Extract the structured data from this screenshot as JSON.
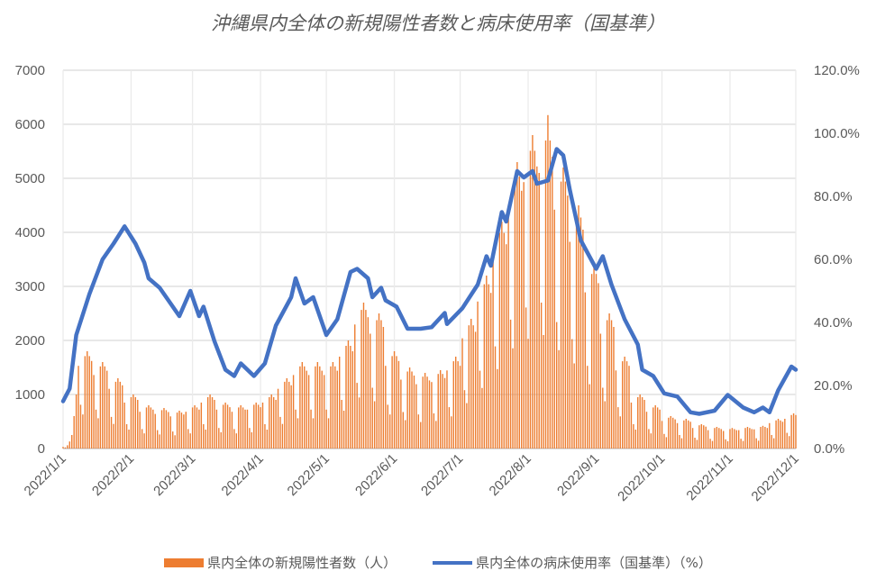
{
  "chart_data": {
    "type": "bar+line",
    "title": "沖縄県内全体の新規陽性者数と病床使用率（国基準）",
    "x_start_date": "2022/1/1",
    "x_tick_labels": [
      "2022/1/1",
      "2022/2/1",
      "2022/3/1",
      "2022/4/1",
      "2022/5/1",
      "2022/6/1",
      "2022/7/1",
      "2022/8/1",
      "2022/9/1",
      "2022/10/1",
      "2022/11/1",
      "2022/12/1"
    ],
    "x_tick_day_offsets": [
      0,
      31,
      59,
      90,
      120,
      151,
      181,
      212,
      243,
      273,
      304,
      334
    ],
    "y_left": {
      "range": [
        0,
        7000
      ],
      "ticks": [
        "0",
        "1000",
        "2000",
        "3000",
        "4000",
        "5000",
        "6000",
        "7000"
      ]
    },
    "y_right": {
      "range": [
        0,
        120
      ],
      "ticks": [
        "0.0%",
        "20.0%",
        "40.0%",
        "60.0%",
        "80.0%",
        "100.0%",
        "120.0%"
      ]
    },
    "grid": true,
    "legend_position": "bottom",
    "series": [
      {
        "name": "県内全体の新規陽性者数（人）",
        "type": "bar",
        "axis": "left",
        "color": "#ED7D31",
        "daily_values": [
          30,
          20,
          60,
          130,
          250,
          600,
          1000,
          1530,
          810,
          630,
          1710,
          1800,
          1710,
          1620,
          1360,
          720,
          560,
          1520,
          1600,
          1520,
          1440,
          1105,
          585,
          455,
          1235,
          1300,
          1235,
          1170,
          850,
          450,
          350,
          950,
          1000,
          950,
          900,
          680,
          360,
          280,
          760,
          800,
          760,
          720,
          640,
          340,
          260,
          710,
          750,
          710,
          675,
          595,
          315,
          245,
          665,
          700,
          665,
          630,
          680,
          360,
          280,
          760,
          800,
          760,
          720,
          850,
          450,
          350,
          950,
          1000,
          950,
          900,
          720,
          380,
          300,
          810,
          850,
          810,
          765,
          680,
          360,
          280,
          760,
          800,
          760,
          720,
          720,
          380,
          300,
          810,
          850,
          810,
          765,
          850,
          450,
          350,
          950,
          1000,
          950,
          900,
          1105,
          585,
          455,
          1235,
          1300,
          1235,
          1170,
          1360,
          720,
          560,
          1520,
          1600,
          1520,
          1440,
          1360,
          720,
          560,
          1520,
          1600,
          1520,
          1440,
          1360,
          720,
          560,
          1520,
          1600,
          1520,
          1440,
          1700,
          900,
          700,
          1900,
          2000,
          1900,
          1800,
          2295,
          1215,
          945,
          2565,
          2700,
          2565,
          2430,
          2125,
          1125,
          875,
          2375,
          2500,
          2375,
          2250,
          1530,
          810,
          630,
          1710,
          1800,
          1710,
          1620,
          1275,
          675,
          525,
          1425,
          1500,
          1425,
          1350,
          1190,
          630,
          490,
          1330,
          1400,
          1330,
          1260,
          1230,
          650,
          510,
          1380,
          1450,
          1380,
          1305,
          1445,
          765,
          595,
          1615,
          1700,
          1615,
          1530,
          2040,
          1080,
          840,
          2280,
          2400,
          2280,
          2160,
          2720,
          1440,
          1120,
          3040,
          3200,
          3040,
          2880,
          3570,
          1890,
          1470,
          3990,
          4200,
          3990,
          3780,
          4505,
          2385,
          1855,
          5035,
          5300,
          5035,
          4770,
          4930,
          2610,
          2030,
          5510,
          5800,
          5510,
          5220,
          5100,
          2700,
          2100,
          5700,
          6170,
          5700,
          5400,
          4420,
          2340,
          1820,
          4940,
          5200,
          4940,
          4680,
          3825,
          2025,
          1575,
          4275,
          4500,
          4275,
          4050,
          2890,
          1530,
          1190,
          3230,
          3400,
          3230,
          3060,
          2125,
          1125,
          875,
          2375,
          2500,
          2375,
          2250,
          1445,
          765,
          595,
          1615,
          1700,
          1615,
          1530,
          850,
          450,
          350,
          950,
          1000,
          950,
          900,
          680,
          360,
          280,
          760,
          800,
          760,
          720,
          510,
          270,
          210,
          570,
          600,
          570,
          540,
          470,
          250,
          190,
          520,
          550,
          520,
          495,
          380,
          200,
          160,
          430,
          450,
          430,
          405,
          340,
          180,
          140,
          380,
          400,
          380,
          360,
          325,
          170,
          135,
          360,
          380,
          360,
          340,
          340,
          180,
          140,
          380,
          400,
          380,
          360,
          355,
          190,
          145,
          400,
          420,
          400,
          380,
          470,
          250,
          190,
          520,
          550,
          520,
          495,
          550,
          290,
          230,
          620,
          650,
          620
        ]
      },
      {
        "name": "県内全体の病床使用率（国基準）（%）",
        "type": "line",
        "axis": "right",
        "color": "#4472C4",
        "points_day_pct": [
          [
            0,
            15
          ],
          [
            3,
            19
          ],
          [
            6,
            36
          ],
          [
            12,
            49
          ],
          [
            18,
            60
          ],
          [
            23,
            65
          ],
          [
            28,
            70.5
          ],
          [
            33,
            65
          ],
          [
            37,
            59
          ],
          [
            39,
            54
          ],
          [
            44,
            51
          ],
          [
            49,
            46
          ],
          [
            53,
            42
          ],
          [
            58,
            50
          ],
          [
            62,
            42
          ],
          [
            64,
            45
          ],
          [
            69,
            34
          ],
          [
            74,
            25
          ],
          [
            78,
            23
          ],
          [
            81,
            27
          ],
          [
            87,
            23
          ],
          [
            92,
            27
          ],
          [
            97,
            39
          ],
          [
            104,
            48
          ],
          [
            106,
            54
          ],
          [
            110,
            46
          ],
          [
            114,
            48
          ],
          [
            120,
            36
          ],
          [
            125,
            41
          ],
          [
            131,
            56
          ],
          [
            134,
            57
          ],
          [
            139,
            54
          ],
          [
            141,
            48
          ],
          [
            145,
            51
          ],
          [
            147,
            47
          ],
          [
            152,
            45
          ],
          [
            157,
            38
          ],
          [
            163,
            38
          ],
          [
            168,
            38.5
          ],
          [
            174,
            43
          ],
          [
            175,
            39.5
          ],
          [
            182,
            44.5
          ],
          [
            189,
            52
          ],
          [
            193,
            61
          ],
          [
            195,
            58
          ],
          [
            200,
            75
          ],
          [
            202,
            72
          ],
          [
            207,
            88
          ],
          [
            210,
            86
          ],
          [
            214,
            88
          ],
          [
            216,
            84
          ],
          [
            221,
            85
          ],
          [
            225,
            95
          ],
          [
            228,
            93
          ],
          [
            231,
            82
          ],
          [
            236,
            66
          ],
          [
            243,
            57
          ],
          [
            246,
            61
          ],
          [
            250,
            52
          ],
          [
            256,
            41
          ],
          [
            262,
            33
          ],
          [
            264,
            25
          ],
          [
            269,
            23
          ],
          [
            274,
            17.5
          ],
          [
            280,
            16.5
          ],
          [
            286,
            11.5
          ],
          [
            290,
            11
          ],
          [
            297,
            12
          ],
          [
            303,
            17
          ],
          [
            310,
            13
          ],
          [
            315,
            11.5
          ],
          [
            319,
            13
          ],
          [
            322,
            11.5
          ],
          [
            326,
            18.5
          ],
          [
            332,
            26
          ],
          [
            334,
            25
          ]
        ]
      }
    ]
  }
}
